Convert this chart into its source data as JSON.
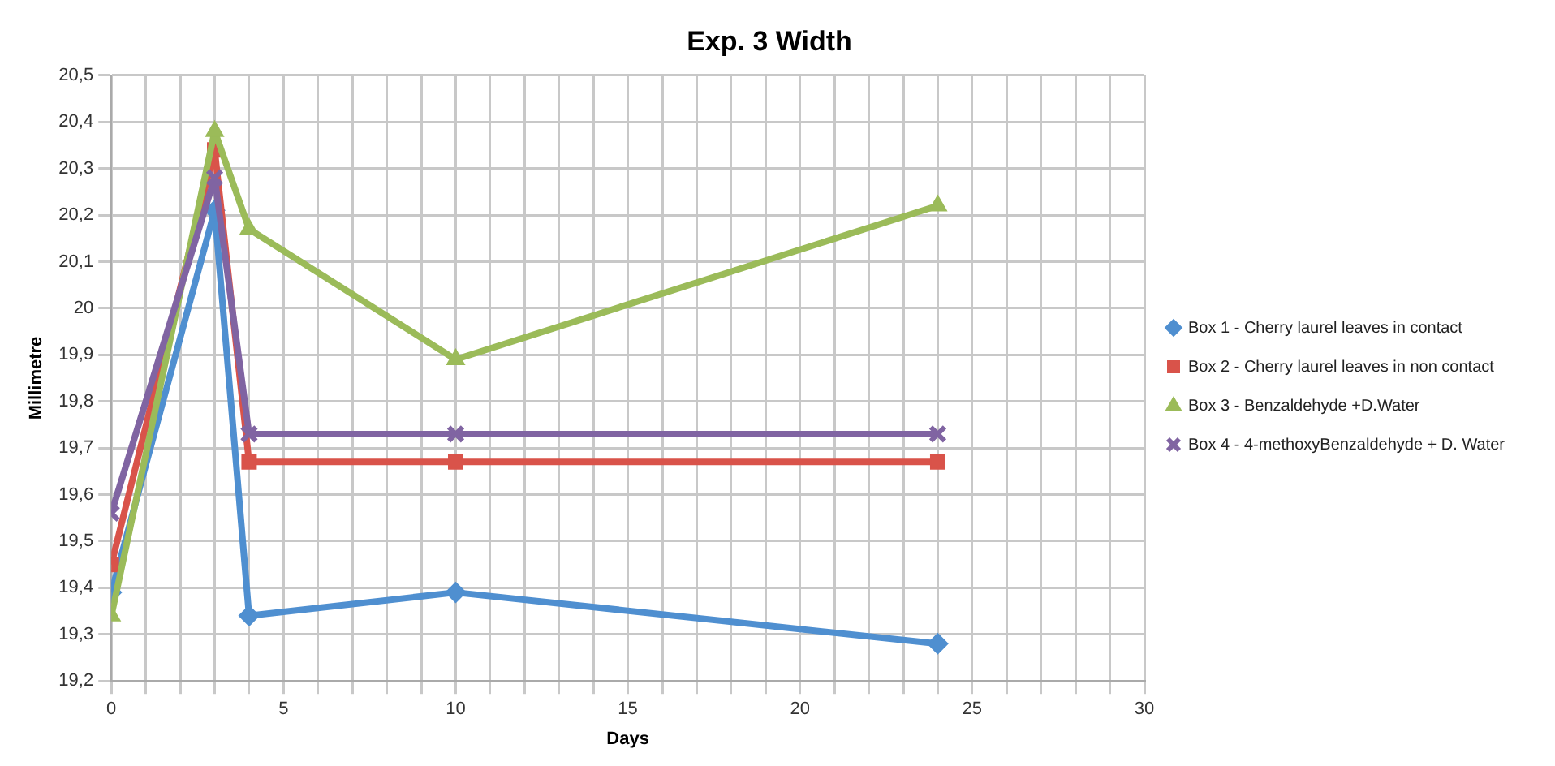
{
  "chart_data": {
    "type": "line",
    "title": "Exp. 3 Width",
    "xlabel": "Days",
    "ylabel": "Millimetre",
    "x": [
      0,
      3,
      4,
      10,
      24
    ],
    "series": [
      {
        "name": "Box 1 - Cherry laurel leaves in contact",
        "color": "#4f8fd0",
        "marker": "diamond",
        "values": [
          19.39,
          20.21,
          19.34,
          19.39,
          19.28
        ]
      },
      {
        "name": "Box 2 - Cherry laurel leaves in non contact",
        "color": "#d9534a",
        "marker": "square",
        "values": [
          19.45,
          20.34,
          19.67,
          19.67,
          19.67
        ]
      },
      {
        "name": "Box 3 - Benzaldehyde +D.Water",
        "color": "#9bbb59",
        "marker": "triangle",
        "values": [
          19.34,
          20.38,
          20.17,
          19.89,
          20.22
        ]
      },
      {
        "name": "Box 4 - 4-methoxyBenzaldehyde + D. Water",
        "color": "#8064a2",
        "marker": "cross",
        "values": [
          19.56,
          20.28,
          19.73,
          19.73,
          19.73
        ]
      }
    ],
    "xlim": [
      0,
      30
    ],
    "xticks": [
      0,
      {
        "value": 1,
        "label": null
      },
      {
        "value": 2,
        "label": null
      },
      {
        "value": 3,
        "label": null
      },
      {
        "value": 4,
        "label": null
      },
      5,
      {
        "value": 6,
        "label": null
      },
      {
        "value": 7,
        "label": null
      },
      {
        "value": 8,
        "label": null
      },
      {
        "value": 9,
        "label": null
      },
      10,
      {
        "value": 11,
        "label": null
      },
      {
        "value": 12,
        "label": null
      },
      {
        "value": 13,
        "label": null
      },
      {
        "value": 14,
        "label": null
      },
      15,
      {
        "value": 16,
        "label": null
      },
      {
        "value": 17,
        "label": null
      },
      {
        "value": 18,
        "label": null
      },
      {
        "value": 19,
        "label": null
      },
      20,
      {
        "value": 21,
        "label": null
      },
      {
        "value": 22,
        "label": null
      },
      {
        "value": 23,
        "label": null
      },
      {
        "value": 24,
        "label": null
      },
      25,
      {
        "value": 26,
        "label": null
      },
      {
        "value": 27,
        "label": null
      },
      {
        "value": 28,
        "label": null
      },
      {
        "value": 29,
        "label": null
      },
      30
    ],
    "ylim": [
      19.2,
      20.5
    ],
    "yticks": [
      {
        "value": 19.2,
        "label": "19,2"
      },
      {
        "value": 19.3,
        "label": "19,3"
      },
      {
        "value": 19.4,
        "label": "19,4"
      },
      {
        "value": 19.5,
        "label": "19,5"
      },
      {
        "value": 19.6,
        "label": "19,6"
      },
      {
        "value": 19.7,
        "label": "19,7"
      },
      {
        "value": 19.8,
        "label": "19,8"
      },
      {
        "value": 19.9,
        "label": "19,9"
      },
      20,
      {
        "value": 20.1,
        "label": "20,1"
      },
      {
        "value": 20.2,
        "label": "20,2"
      },
      {
        "value": 20.3,
        "label": "20,3"
      },
      {
        "value": 20.4,
        "label": "20,4"
      },
      {
        "value": 20.5,
        "label": "20,5"
      }
    ],
    "grid": true,
    "legend": "right",
    "line_style": "solid"
  }
}
